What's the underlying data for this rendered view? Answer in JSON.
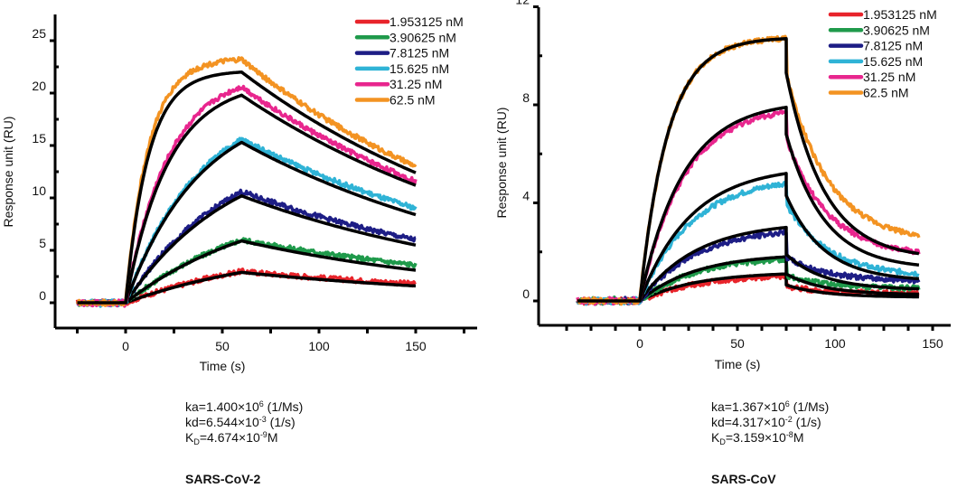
{
  "chart_data": [
    {
      "type": "line",
      "title": "SARS-CoV-2",
      "xlabel": "Time (s)",
      "ylabel": "Response unit (RU)",
      "xlim": [
        -30,
        175
      ],
      "ylim": [
        -2.5,
        27
      ],
      "xticks": [
        0,
        50,
        100,
        150
      ],
      "yticks": [
        0,
        5,
        10,
        15,
        20,
        25
      ],
      "legend_position": "top-right",
      "association_end": 60,
      "data_end": 150,
      "baseline_start": -25,
      "series": [
        {
          "name": "1.953125 nM",
          "color": "#e8242b",
          "fit_peak": 2.9,
          "fit_end": 1.6,
          "obs_peak": 3.0,
          "obs_end": 1.8
        },
        {
          "name": "3.90625 nM",
          "color": "#1f9a4b",
          "fit_peak": 5.9,
          "fit_end": 3.1,
          "obs_peak": 6.0,
          "obs_end": 3.6
        },
        {
          "name": "7.8125 nM",
          "color": "#1d1d85",
          "fit_peak": 10.2,
          "fit_end": 5.5,
          "obs_peak": 10.6,
          "obs_end": 6.0
        },
        {
          "name": "15.625 nM",
          "color": "#2fb3d6",
          "fit_peak": 15.3,
          "fit_end": 8.4,
          "obs_peak": 15.6,
          "obs_end": 9.0
        },
        {
          "name": "31.25 nM",
          "color": "#e8268e",
          "fit_peak": 19.8,
          "fit_end": 11.2,
          "obs_peak": 20.6,
          "obs_end": 11.6
        },
        {
          "name": "62.5 nM",
          "color": "#f39322",
          "fit_peak": 22.0,
          "fit_end": 12.4,
          "obs_peak": 23.2,
          "obs_end": 13.0
        }
      ],
      "association_rates": [
        0.012,
        0.014,
        0.018,
        0.026,
        0.045,
        0.085
      ],
      "parameters": {
        "ka": {
          "label": "ka=1.400×10",
          "exp": "6",
          "unit": " (1/Ms)"
        },
        "kd": {
          "label": "kd=6.544×10",
          "exp": "-3",
          "unit": " (1/s)"
        },
        "KD": {
          "label": "K",
          "sub": "D",
          "value": "=4.674×10",
          "exp": "-9",
          "unit": "M"
        }
      }
    },
    {
      "type": "line",
      "title": "SARS-CoV",
      "xlabel": "Time (s)",
      "ylabel": "Response unit (RU)",
      "xlim": [
        -50,
        165
      ],
      "ylim": [
        -1,
        12
      ],
      "xticks": [
        0,
        50,
        100,
        150
      ],
      "yticks": [
        0,
        4,
        8,
        12
      ],
      "legend_position": "top-right",
      "association_end": 75,
      "data_end": 143,
      "baseline_start": -32,
      "series": [
        {
          "name": "1.953125 nM",
          "color": "#e8242b",
          "fit_peak": 1.1,
          "fit_drop": 0.65,
          "fit_end": 0.15,
          "obs_peak": 1.0,
          "obs_end": 0.3
        },
        {
          "name": "3.90625 nM",
          "color": "#1f9a4b",
          "fit_peak": 1.8,
          "fit_drop": 1.1,
          "fit_end": 0.25,
          "obs_peak": 1.7,
          "obs_end": 0.5
        },
        {
          "name": "7.8125 nM",
          "color": "#1d1d85",
          "fit_peak": 3.0,
          "fit_drop": 1.9,
          "fit_end": 0.45,
          "obs_peak": 2.8,
          "obs_end": 0.8
        },
        {
          "name": "15.625 nM",
          "color": "#2fb3d6",
          "fit_peak": 5.2,
          "fit_drop": 4.3,
          "fit_end": 0.8,
          "obs_peak": 4.8,
          "obs_end": 1.0
        },
        {
          "name": "31.25 nM",
          "color": "#e8268e",
          "fit_peak": 7.9,
          "fit_drop": 6.8,
          "fit_end": 1.3,
          "obs_peak": 7.7,
          "obs_end": 1.8
        },
        {
          "name": "62.5 nM",
          "color": "#f39322",
          "fit_peak": 10.7,
          "fit_drop": 9.3,
          "fit_end": 1.7,
          "obs_peak": 10.7,
          "obs_end": 2.4
        }
      ],
      "association_rates": [
        0.035,
        0.035,
        0.035,
        0.038,
        0.045,
        0.07
      ],
      "parameters": {
        "ka": {
          "label": "ka=1.367×10",
          "exp": "6",
          "unit": " (1/Ms)"
        },
        "kd": {
          "label": "kd=4.317×10",
          "exp": "-2",
          "unit": " (1/s)"
        },
        "KD": {
          "label": "K",
          "sub": "D",
          "value": "=3.159×10",
          "exp": "-8",
          "unit": "M"
        }
      }
    }
  ]
}
